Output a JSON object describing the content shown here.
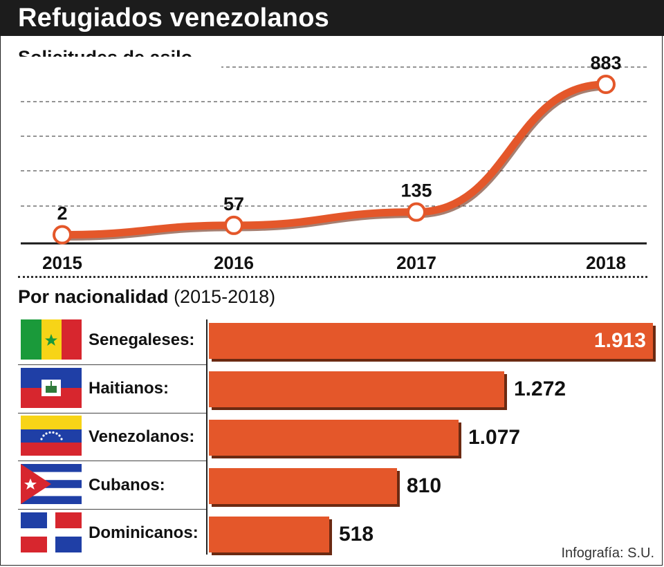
{
  "title": "Refugiados venezolanos",
  "line_section_title": "Solicitudes de asilo",
  "bar_section_title": "Por nacionalidad",
  "bar_section_subtitle": "(2015-2018)",
  "credit": "Infografía: S.U.",
  "colors": {
    "accent": "#e4572a",
    "bar_shadow": "#6b2a12",
    "title_bg": "#1c1c1c"
  },
  "chart_data": [
    {
      "type": "line",
      "title": "Solicitudes de asilo",
      "categories": [
        "2015",
        "2016",
        "2017",
        "2018"
      ],
      "values": [
        2,
        57,
        135,
        883
      ],
      "value_labels": [
        "2",
        "57",
        "135",
        "883"
      ],
      "ylim": [
        0,
        900
      ],
      "grid": true,
      "xlabel": "",
      "ylabel": ""
    },
    {
      "type": "bar",
      "orientation": "horizontal",
      "title": "Por nacionalidad (2015-2018)",
      "categories": [
        "Senegaleses:",
        "Haitianos:",
        "Venezolanos:",
        "Cubanos:",
        "Dominicanos:"
      ],
      "flags": [
        "senegal-flag-icon",
        "haiti-flag-icon",
        "venezuela-flag-icon",
        "cuba-flag-icon",
        "dominican-republic-flag-icon"
      ],
      "values": [
        1913,
        1272,
        1077,
        810,
        518
      ],
      "value_labels": [
        "1.913",
        "1.272",
        "1.077",
        "810",
        "518"
      ],
      "xlim": [
        0,
        1913
      ]
    }
  ]
}
